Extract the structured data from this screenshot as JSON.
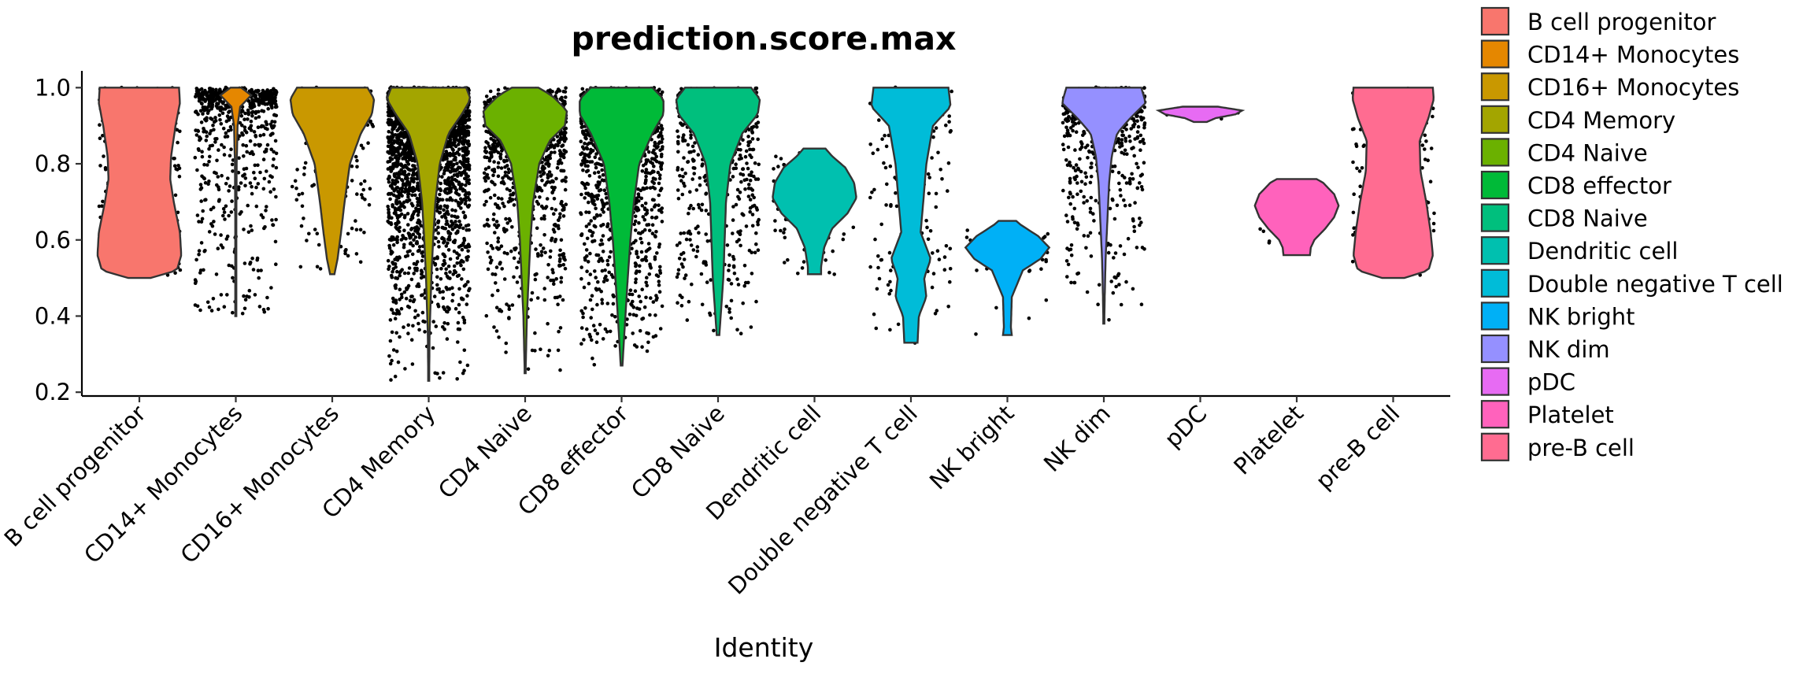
{
  "chart_data": {
    "type": "violin",
    "title": "prediction.score.max",
    "xlabel": "Identity",
    "ylabel": "",
    "ylim": [
      0.19,
      1.04
    ],
    "yticks": [
      0.2,
      0.4,
      0.6,
      0.8,
      1.0
    ],
    "ytick_labels": [
      "0.2",
      "0.4",
      "0.6",
      "0.8",
      "1.0"
    ],
    "points_overlay": true,
    "legend_position": "right",
    "categories": [
      "B cell progenitor",
      "CD14+ Monocytes",
      "CD16+ Monocytes",
      "CD4 Memory",
      "CD4 Naive",
      "CD8 effector",
      "CD8 Naive",
      "Dendritic cell",
      "Double negative T cell",
      "NK bright",
      "NK dim",
      "pDC",
      "Platelet",
      "pre-B cell"
    ],
    "series": [
      {
        "name": "B cell progenitor",
        "color": "#F8766D",
        "min": 0.5,
        "max": 1.0,
        "n_points": 260,
        "density_y": [
          0.5,
          0.52,
          0.56,
          0.62,
          0.7,
          0.76,
          0.82,
          0.9,
          0.96,
          1.0
        ],
        "density_w": [
          0.25,
          0.85,
          0.95,
          0.92,
          0.78,
          0.7,
          0.72,
          0.82,
          0.92,
          0.9
        ]
      },
      {
        "name": "CD14+ Monocytes",
        "color": "#E58700",
        "min": 0.4,
        "max": 1.0,
        "n_points": 700,
        "density_y": [
          0.4,
          0.6,
          0.8,
          0.9,
          0.95,
          0.98,
          1.0
        ],
        "density_w": [
          0.01,
          0.01,
          0.02,
          0.04,
          0.1,
          0.35,
          0.12
        ]
      },
      {
        "name": "CD16+ Monocytes",
        "color": "#C99800",
        "min": 0.51,
        "max": 1.0,
        "n_points": 220,
        "density_y": [
          0.51,
          0.55,
          0.62,
          0.7,
          0.8,
          0.88,
          0.93,
          0.97,
          1.0
        ],
        "density_w": [
          0.05,
          0.12,
          0.2,
          0.28,
          0.4,
          0.65,
          0.9,
          0.95,
          0.8
        ]
      },
      {
        "name": "CD4 Memory",
        "color": "#A3A500",
        "min": 0.23,
        "max": 1.0,
        "n_points": 3000,
        "density_y": [
          0.23,
          0.35,
          0.5,
          0.6,
          0.7,
          0.8,
          0.88,
          0.93,
          0.97,
          1.0
        ],
        "density_w": [
          0.01,
          0.02,
          0.06,
          0.1,
          0.15,
          0.25,
          0.45,
          0.75,
          0.95,
          0.85
        ]
      },
      {
        "name": "CD4 Naive",
        "color": "#6BB100",
        "min": 0.25,
        "max": 1.0,
        "n_points": 1100,
        "density_y": [
          0.25,
          0.4,
          0.5,
          0.6,
          0.7,
          0.8,
          0.86,
          0.9,
          0.94,
          0.98,
          1.0
        ],
        "density_w": [
          0.01,
          0.04,
          0.08,
          0.12,
          0.18,
          0.32,
          0.55,
          0.9,
          0.95,
          0.6,
          0.3
        ]
      },
      {
        "name": "CD8 effector",
        "color": "#00BA38",
        "min": 0.27,
        "max": 1.0,
        "n_points": 1300,
        "density_y": [
          0.27,
          0.35,
          0.5,
          0.6,
          0.7,
          0.8,
          0.88,
          0.93,
          0.97,
          1.0
        ],
        "density_w": [
          0.02,
          0.06,
          0.14,
          0.2,
          0.28,
          0.4,
          0.7,
          0.95,
          0.95,
          0.7
        ]
      },
      {
        "name": "CD8 Naive",
        "color": "#00BF7D",
        "min": 0.35,
        "max": 1.0,
        "n_points": 650,
        "density_y": [
          0.35,
          0.4,
          0.5,
          0.6,
          0.7,
          0.8,
          0.88,
          0.93,
          0.97,
          1.0
        ],
        "density_w": [
          0.03,
          0.06,
          0.12,
          0.15,
          0.18,
          0.28,
          0.55,
          0.9,
          0.95,
          0.75
        ]
      },
      {
        "name": "Dendritic cell",
        "color": "#00C0AF",
        "min": 0.51,
        "max": 0.84,
        "n_points": 110,
        "density_y": [
          0.51,
          0.53,
          0.58,
          0.63,
          0.67,
          0.71,
          0.75,
          0.79,
          0.82,
          0.84
        ],
        "density_w": [
          0.15,
          0.15,
          0.22,
          0.4,
          0.75,
          0.95,
          0.9,
          0.7,
          0.4,
          0.25
        ]
      },
      {
        "name": "Double negative T cell",
        "color": "#00BCD8",
        "min": 0.33,
        "max": 1.0,
        "n_points": 180,
        "density_y": [
          0.33,
          0.4,
          0.45,
          0.5,
          0.55,
          0.62,
          0.7,
          0.8,
          0.9,
          0.95,
          1.0
        ],
        "density_w": [
          0.15,
          0.18,
          0.35,
          0.3,
          0.45,
          0.22,
          0.28,
          0.35,
          0.5,
          0.9,
          0.85
        ]
      },
      {
        "name": "NK bright",
        "color": "#00B0F6",
        "min": 0.35,
        "max": 0.65,
        "n_points": 60,
        "density_y": [
          0.35,
          0.37,
          0.45,
          0.52,
          0.55,
          0.58,
          0.61,
          0.64,
          0.65
        ],
        "density_w": [
          0.1,
          0.08,
          0.1,
          0.35,
          0.75,
          0.95,
          0.7,
          0.3,
          0.2
        ]
      },
      {
        "name": "NK dim",
        "color": "#9590FF",
        "min": 0.38,
        "max": 1.0,
        "n_points": 700,
        "density_y": [
          0.38,
          0.45,
          0.55,
          0.65,
          0.75,
          0.82,
          0.88,
          0.92,
          0.96,
          1.0
        ],
        "density_w": [
          0.01,
          0.02,
          0.04,
          0.08,
          0.12,
          0.18,
          0.3,
          0.6,
          0.95,
          0.85
        ]
      },
      {
        "name": "pDC",
        "color": "#E76BF3",
        "min": 0.91,
        "max": 0.95,
        "n_points": 12,
        "density_y": [
          0.91,
          0.92,
          0.93,
          0.94,
          0.95
        ],
        "density_w": [
          0.15,
          0.35,
          0.8,
          0.95,
          0.4
        ]
      },
      {
        "name": "Platelet",
        "color": "#FF62BC",
        "min": 0.56,
        "max": 0.76,
        "n_points": 14,
        "density_y": [
          0.56,
          0.58,
          0.6,
          0.63,
          0.66,
          0.69,
          0.72,
          0.75,
          0.76
        ],
        "density_w": [
          0.3,
          0.32,
          0.4,
          0.65,
          0.85,
          0.95,
          0.85,
          0.6,
          0.45
        ]
      },
      {
        "name": "pre-B cell",
        "color": "#FF6C91",
        "min": 0.5,
        "max": 1.0,
        "n_points": 200,
        "density_y": [
          0.5,
          0.52,
          0.56,
          0.62,
          0.7,
          0.78,
          0.86,
          0.92,
          0.97,
          1.0
        ],
        "density_w": [
          0.25,
          0.8,
          0.9,
          0.85,
          0.75,
          0.62,
          0.6,
          0.8,
          0.92,
          0.9
        ]
      }
    ]
  }
}
